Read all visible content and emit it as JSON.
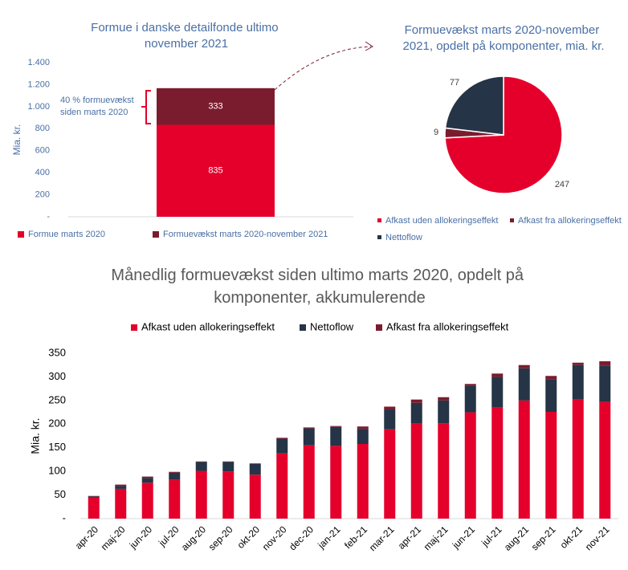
{
  "chart_data": [
    {
      "type": "bar",
      "title": "Formue i danske detailfonde ultimo november 2021",
      "ylabel": "Mia. kr.",
      "annotation": "40 % formuevækst siden marts 2020",
      "categories": [
        null
      ],
      "series": [
        {
          "name": "Formue marts 2020",
          "color": "#e4002b",
          "values": [
            835
          ]
        },
        {
          "name": "Formuevækst marts 2020-november 2021",
          "color": "#7b1c2e",
          "values": [
            333
          ]
        }
      ],
      "ylim": [
        0,
        1400
      ],
      "yticks": [
        {
          "value": 0,
          "label": "-"
        },
        200,
        400,
        600,
        800,
        {
          "value": 1000,
          "label": "1.000"
        },
        {
          "value": 1200,
          "label": "1.200"
        },
        {
          "value": 1400,
          "label": "1.400"
        }
      ]
    },
    {
      "type": "pie",
      "title": "Formuevækst marts 2020-november 2021, opdelt på komponenter, mia. kr.",
      "categories": [
        "Afkast uden allokeringseffekt",
        "Afkast fra allokeringseffekt",
        "Nettoflow"
      ],
      "values": [
        247,
        9,
        77
      ],
      "colors": [
        "#e4002b",
        "#7b1c2e",
        "#253446"
      ]
    },
    {
      "type": "bar",
      "title": "Månedlig formuevækst siden ultimo marts 2020, opdelt på komponenter, akkumulerende",
      "ylabel": "Mia. kr.",
      "categories": [
        "apr-20",
        "maj-20",
        "jun-20",
        "jul-20",
        "aug-20",
        "sep-20",
        "okt-20",
        "nov-20",
        "dec-20",
        "jan-21",
        "feb-21",
        "mar-21",
        "apr-21",
        "maj-21",
        "jun-21",
        "jul-21",
        "aug-21",
        "sep-21",
        "okt-21",
        "nov-21"
      ],
      "series": [
        {
          "name": "Afkast uden allokeringseffekt",
          "color": "#e4002b",
          "values": [
            45,
            63,
            76,
            82,
            101,
            100,
            93,
            138,
            155,
            154,
            158,
            189,
            201,
            202,
            225,
            235,
            250,
            226,
            252,
            247
          ]
        },
        {
          "name": "Nettoflow",
          "color": "#253446",
          "values": [
            2,
            6,
            10,
            15,
            19,
            20,
            23,
            31,
            36,
            40,
            32,
            42,
            44,
            48,
            56,
            65,
            68,
            69,
            73,
            77
          ]
        },
        {
          "name": "Afkast fra allokeringseffekt",
          "color": "#7b1c2e",
          "values": [
            1,
            3,
            3,
            2,
            1,
            1,
            1,
            2,
            2,
            2,
            5,
            6,
            7,
            7,
            4,
            7,
            7,
            7,
            5,
            9
          ]
        }
      ],
      "ylim": [
        0,
        350
      ],
      "yticks": [
        {
          "value": 0,
          "label": "-"
        },
        50,
        100,
        150,
        200,
        250,
        300,
        350
      ]
    }
  ]
}
